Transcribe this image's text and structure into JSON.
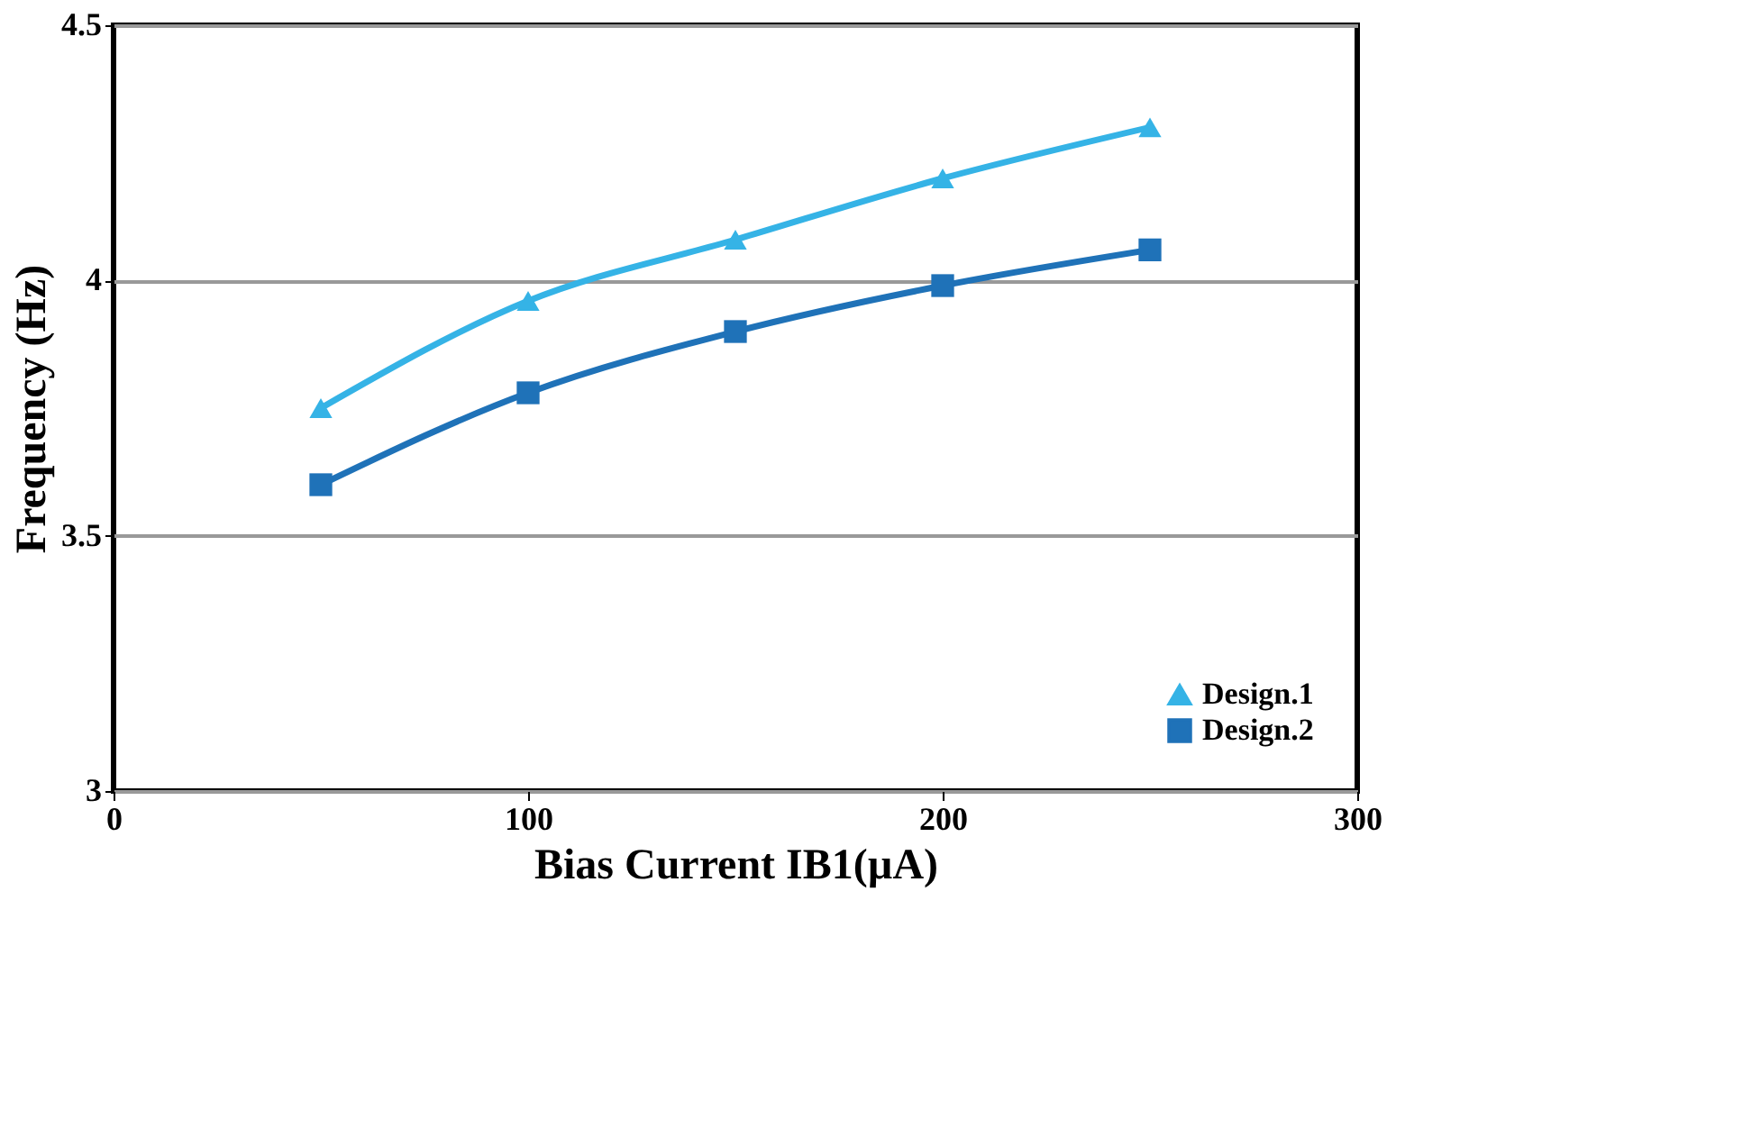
{
  "chart_data": {
    "type": "line",
    "xlabel": "Bias Current IB1(µA)",
    "ylabel": "Frequency (Hz)",
    "x": [
      50,
      100,
      150,
      200,
      250
    ],
    "series": [
      {
        "name": "Design.1",
        "color": "#35b3e6",
        "marker": "triangle",
        "values": [
          3.75,
          3.96,
          4.08,
          4.2,
          4.3
        ]
      },
      {
        "name": "Design.2",
        "color": "#1f72b8",
        "marker": "square",
        "values": [
          3.6,
          3.78,
          3.9,
          3.99,
          4.06
        ]
      }
    ],
    "xlim": [
      0,
      300
    ],
    "xticks": [
      0,
      100,
      200,
      300
    ],
    "ylim": [
      3,
      4.5
    ],
    "yticks": [
      3,
      3.5,
      4,
      4.5
    ],
    "grid": "y",
    "legend": "bottom right",
    "line_style": "solid"
  }
}
